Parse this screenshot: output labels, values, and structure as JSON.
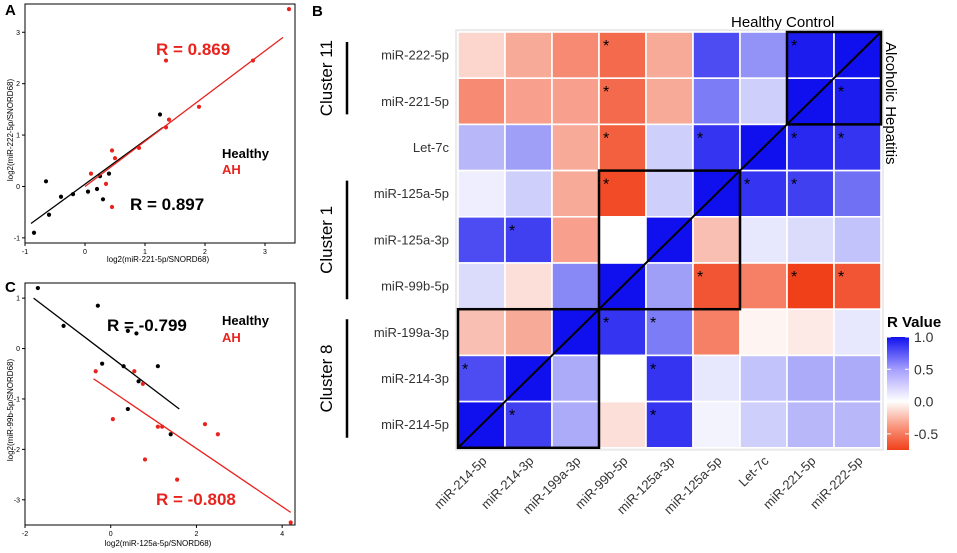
{
  "panels": {
    "A": {
      "letter": "A",
      "xlabel": "log2(miR-221-5p/SNORD68)",
      "ylabel": "log2(miR-222-5p/SNORD68)",
      "xlim": [
        -1,
        3.5
      ],
      "ylim": [
        -1.1,
        3.55
      ],
      "xticks": [
        -1,
        0,
        1,
        2,
        3
      ],
      "yticks": [
        -1,
        0,
        1,
        2,
        3
      ],
      "legend_healthy": "Healthy",
      "legend_ah": "AH",
      "r_ah": "R = 0.869",
      "r_healthy": "R = 0.897"
    },
    "C": {
      "letter": "C",
      "xlabel": "log2(miR-125a-5p/SNORD68)",
      "ylabel": "log2(miR-99b-5p/SNORD68)",
      "xlim": [
        -2,
        4.3
      ],
      "ylim": [
        -3.5,
        1.3
      ],
      "xticks": [
        -2,
        0,
        2,
        4
      ],
      "yticks": [
        -3,
        -2,
        -1,
        0,
        1
      ],
      "legend_healthy": "Healthy",
      "legend_ah": "AH",
      "r_healthy": "R = -0.799",
      "r_ah": "R = -0.808"
    },
    "B": {
      "letter": "B",
      "top_label": "Healthy Control",
      "right_label": "Alcoholic Hepatitis",
      "colorbar_title": "R Value",
      "colorbar_ticks": [
        "1.0",
        "0.5",
        "0.0",
        "-0.5"
      ],
      "clusters": [
        "Cluster 11",
        "Cluster 1",
        "Cluster 8"
      ],
      "star": "*"
    }
  },
  "colors": {
    "healthy": "#000000",
    "ah": "#e8231e",
    "high": "#1010ee",
    "low": "#f0401a"
  },
  "chart_data": [
    {
      "type": "scatter",
      "panel": "A",
      "xlabel": "log2(miR-221-5p/SNORD68)",
      "ylabel": "log2(miR-222-5p/SNORD68)",
      "series": [
        {
          "name": "Healthy",
          "points": [
            [
              -0.85,
              -0.9
            ],
            [
              -0.65,
              0.1
            ],
            [
              -0.6,
              -0.55
            ],
            [
              -0.4,
              -0.2
            ],
            [
              -0.2,
              -0.15
            ],
            [
              0.05,
              -0.1
            ],
            [
              0.2,
              -0.05
            ],
            [
              0.25,
              0.2
            ],
            [
              0.3,
              -0.25
            ],
            [
              0.4,
              0.25
            ],
            [
              1.25,
              1.4
            ]
          ],
          "fit": [
            [
              -0.9,
              -0.72
            ],
            [
              1.3,
              1.15
            ]
          ],
          "r": 0.897
        },
        {
          "name": "AH",
          "points": [
            [
              0.1,
              0.25
            ],
            [
              0.35,
              0.05
            ],
            [
              0.5,
              0.55
            ],
            [
              0.45,
              0.7
            ],
            [
              0.45,
              -0.4
            ],
            [
              0.9,
              0.75
            ],
            [
              1.35,
              1.15
            ],
            [
              1.4,
              1.3
            ],
            [
              1.35,
              2.45
            ],
            [
              1.9,
              1.55
            ],
            [
              2.8,
              2.45
            ],
            [
              3.4,
              3.45
            ]
          ],
          "fit": [
            [
              0.0,
              0.0
            ],
            [
              3.3,
              2.9
            ]
          ],
          "r": 0.869
        }
      ]
    },
    {
      "type": "scatter",
      "panel": "C",
      "xlabel": "log2(miR-125a-5p/SNORD68)",
      "ylabel": "log2(miR-99b-5p/SNORD68)",
      "series": [
        {
          "name": "Healthy",
          "points": [
            [
              -1.7,
              1.2
            ],
            [
              -1.1,
              0.45
            ],
            [
              -0.3,
              0.85
            ],
            [
              -0.2,
              -0.3
            ],
            [
              0.3,
              -0.35
            ],
            [
              0.4,
              0.35
            ],
            [
              0.6,
              0.3
            ],
            [
              0.65,
              -0.65
            ],
            [
              0.4,
              -1.2
            ],
            [
              1.1,
              -0.35
            ],
            [
              1.4,
              -1.7
            ]
          ],
          "fit": [
            [
              -1.8,
              1.0
            ],
            [
              1.6,
              -1.2
            ]
          ],
          "r": -0.799
        },
        {
          "name": "AH",
          "points": [
            [
              -0.35,
              -0.45
            ],
            [
              0.05,
              -1.4
            ],
            [
              0.55,
              -0.45
            ],
            [
              0.75,
              -0.7
            ],
            [
              0.8,
              -2.2
            ],
            [
              1.1,
              -1.55
            ],
            [
              1.2,
              -1.55
            ],
            [
              1.55,
              -2.6
            ],
            [
              2.2,
              -1.5
            ],
            [
              2.5,
              -1.7
            ],
            [
              4.2,
              -3.45
            ]
          ],
          "fit": [
            [
              -0.4,
              -0.6
            ],
            [
              4.2,
              -3.25
            ]
          ],
          "r": -0.808
        }
      ]
    },
    {
      "type": "heatmap",
      "panel": "B",
      "row_labels": [
        "miR-222-5p",
        "miR-221-5p",
        "Let-7c",
        "miR-125a-5p",
        "miR-125a-3p",
        "miR-99b-5p",
        "miR-199a-3p",
        "miR-214-3p",
        "miR-214-5p"
      ],
      "col_labels": [
        "miR-214-5p",
        "miR-214-3p",
        "miR-199a-3p",
        "miR-99b-5p",
        "miR-125a-3p",
        "miR-125a-5p",
        "Let-7c",
        "miR-221-5p",
        "miR-222-5p"
      ],
      "values": [
        [
          -0.2,
          -0.4,
          -0.55,
          -0.7,
          -0.4,
          0.75,
          0.45,
          0.95,
          1.0
        ],
        [
          -0.55,
          -0.45,
          -0.45,
          -0.7,
          -0.4,
          0.55,
          0.2,
          1.0,
          0.95
        ],
        [
          0.3,
          0.4,
          -0.4,
          -0.75,
          0.2,
          0.85,
          1.0,
          0.9,
          0.85
        ],
        [
          0.07,
          0.2,
          -0.4,
          -0.85,
          0.2,
          1.0,
          0.85,
          0.8,
          0.6
        ],
        [
          0.75,
          0.8,
          -0.45,
          0.0,
          1.0,
          -0.3,
          0.1,
          0.15,
          0.25
        ],
        [
          0.15,
          -0.15,
          0.5,
          1.0,
          0.4,
          -0.8,
          -0.6,
          -0.9,
          -0.8
        ],
        [
          -0.3,
          -0.4,
          1.0,
          0.85,
          0.55,
          -0.6,
          -0.05,
          -0.1,
          0.1
        ],
        [
          0.75,
          1.0,
          0.35,
          0.0,
          0.85,
          0.1,
          0.25,
          0.35,
          0.35
        ],
        [
          1.0,
          0.8,
          0.35,
          -0.15,
          0.85,
          0.05,
          0.2,
          0.3,
          0.3
        ]
      ],
      "significant": [
        [
          0,
          3
        ],
        [
          0,
          7
        ],
        [
          1,
          3
        ],
        [
          1,
          8
        ],
        [
          2,
          3
        ],
        [
          2,
          5
        ],
        [
          2,
          7
        ],
        [
          2,
          8
        ],
        [
          3,
          3
        ],
        [
          3,
          6
        ],
        [
          3,
          7
        ],
        [
          4,
          1
        ],
        [
          5,
          5
        ],
        [
          5,
          7
        ],
        [
          5,
          8
        ],
        [
          6,
          3
        ],
        [
          6,
          4
        ],
        [
          7,
          0
        ],
        [
          7,
          4
        ],
        [
          8,
          1
        ],
        [
          8,
          4
        ]
      ],
      "cluster_boxes": [
        {
          "name": "Cluster 11",
          "rows": [
            0,
            1
          ],
          "cols": [
            7,
            8
          ]
        },
        {
          "name": "Cluster 1",
          "rows": [
            3,
            5
          ],
          "cols": [
            3,
            5
          ]
        },
        {
          "name": "Cluster 8",
          "rows": [
            6,
            8
          ],
          "cols": [
            0,
            2
          ]
        }
      ],
      "colorbar": {
        "title": "R Value",
        "range": [
          -0.75,
          1.0
        ],
        "ticks": [
          1.0,
          0.5,
          0.0,
          -0.5
        ]
      }
    }
  ]
}
